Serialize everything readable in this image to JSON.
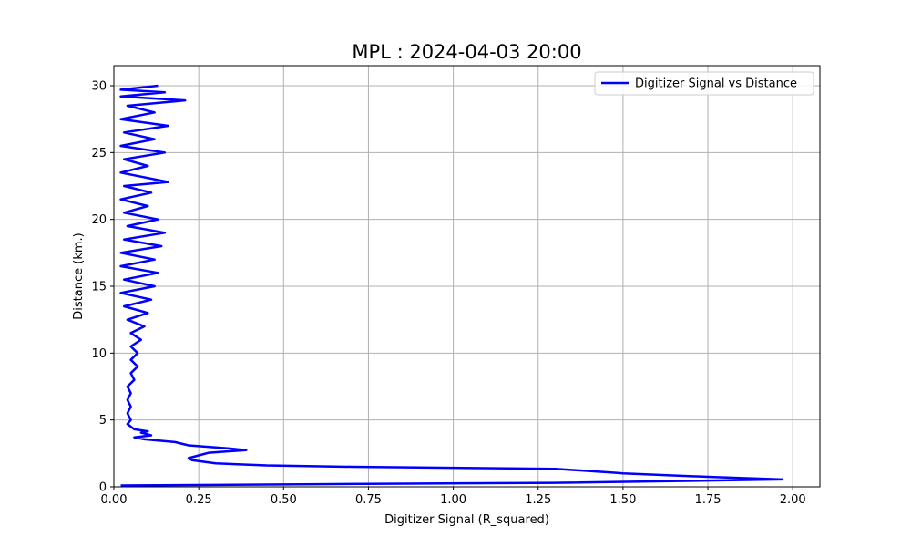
{
  "chart_data": {
    "type": "line",
    "title": "MPL : 2024-04-03 20:00",
    "xlabel": "Digitizer Signal (R_squared)",
    "ylabel": "Distance (km.)",
    "xlim": [
      0,
      2.08
    ],
    "ylim": [
      0,
      31.5
    ],
    "xticks": [
      0,
      0.25,
      0.5,
      0.75,
      1.0,
      1.25,
      1.5,
      1.75,
      2.0
    ],
    "xtick_labels": [
      "0.00",
      "0.25",
      "0.50",
      "0.75",
      "1.00",
      "1.25",
      "1.50",
      "1.75",
      "2.00"
    ],
    "yticks": [
      0,
      5,
      10,
      15,
      20,
      25,
      30
    ],
    "ytick_labels": [
      "0",
      "5",
      "10",
      "15",
      "20",
      "25",
      "30"
    ],
    "grid": true,
    "legend_position": "top-right",
    "series": [
      {
        "name": "Digitizer Signal vs Distance",
        "color": "#0000ff",
        "points": [
          [
            0.02,
            0.1
          ],
          [
            0.6,
            0.2
          ],
          [
            1.3,
            0.3
          ],
          [
            1.97,
            0.55
          ],
          [
            1.75,
            0.75
          ],
          [
            1.5,
            1.0
          ],
          [
            1.48,
            1.05
          ],
          [
            1.3,
            1.35
          ],
          [
            0.7,
            1.5
          ],
          [
            0.45,
            1.6
          ],
          [
            0.3,
            1.75
          ],
          [
            0.23,
            2.0
          ],
          [
            0.22,
            2.15
          ],
          [
            0.25,
            2.35
          ],
          [
            0.28,
            2.55
          ],
          [
            0.39,
            2.75
          ],
          [
            0.35,
            2.85
          ],
          [
            0.3,
            2.95
          ],
          [
            0.22,
            3.1
          ],
          [
            0.18,
            3.35
          ],
          [
            0.09,
            3.55
          ],
          [
            0.06,
            3.7
          ],
          [
            0.11,
            3.85
          ],
          [
            0.08,
            4.05
          ],
          [
            0.1,
            4.15
          ],
          [
            0.06,
            4.3
          ],
          [
            0.05,
            4.5
          ],
          [
            0.04,
            4.7
          ],
          [
            0.05,
            5.0
          ],
          [
            0.04,
            5.5
          ],
          [
            0.05,
            6.0
          ],
          [
            0.04,
            6.5
          ],
          [
            0.05,
            7.0
          ],
          [
            0.04,
            7.5
          ],
          [
            0.06,
            8.0
          ],
          [
            0.05,
            8.5
          ],
          [
            0.07,
            9.0
          ],
          [
            0.05,
            9.5
          ],
          [
            0.07,
            10.0
          ],
          [
            0.05,
            10.5
          ],
          [
            0.08,
            11.0
          ],
          [
            0.05,
            11.5
          ],
          [
            0.09,
            12.0
          ],
          [
            0.04,
            12.5
          ],
          [
            0.1,
            13.0
          ],
          [
            0.03,
            13.5
          ],
          [
            0.11,
            14.0
          ],
          [
            0.02,
            14.5
          ],
          [
            0.12,
            15.0
          ],
          [
            0.03,
            15.5
          ],
          [
            0.13,
            16.0
          ],
          [
            0.02,
            16.5
          ],
          [
            0.12,
            17.0
          ],
          [
            0.02,
            17.5
          ],
          [
            0.14,
            18.0
          ],
          [
            0.03,
            18.5
          ],
          [
            0.15,
            19.0
          ],
          [
            0.04,
            19.5
          ],
          [
            0.13,
            20.0
          ],
          [
            0.03,
            20.5
          ],
          [
            0.1,
            21.0
          ],
          [
            0.02,
            21.5
          ],
          [
            0.11,
            22.0
          ],
          [
            0.03,
            22.5
          ],
          [
            0.16,
            22.8
          ],
          [
            0.02,
            23.5
          ],
          [
            0.1,
            24.0
          ],
          [
            0.03,
            24.5
          ],
          [
            0.15,
            25.0
          ],
          [
            0.02,
            25.5
          ],
          [
            0.12,
            26.0
          ],
          [
            0.03,
            26.5
          ],
          [
            0.16,
            27.0
          ],
          [
            0.02,
            27.5
          ],
          [
            0.12,
            28.0
          ],
          [
            0.04,
            28.5
          ],
          [
            0.21,
            28.9
          ],
          [
            0.02,
            29.2
          ],
          [
            0.15,
            29.5
          ],
          [
            0.02,
            29.7
          ],
          [
            0.13,
            30.0
          ]
        ]
      }
    ]
  }
}
